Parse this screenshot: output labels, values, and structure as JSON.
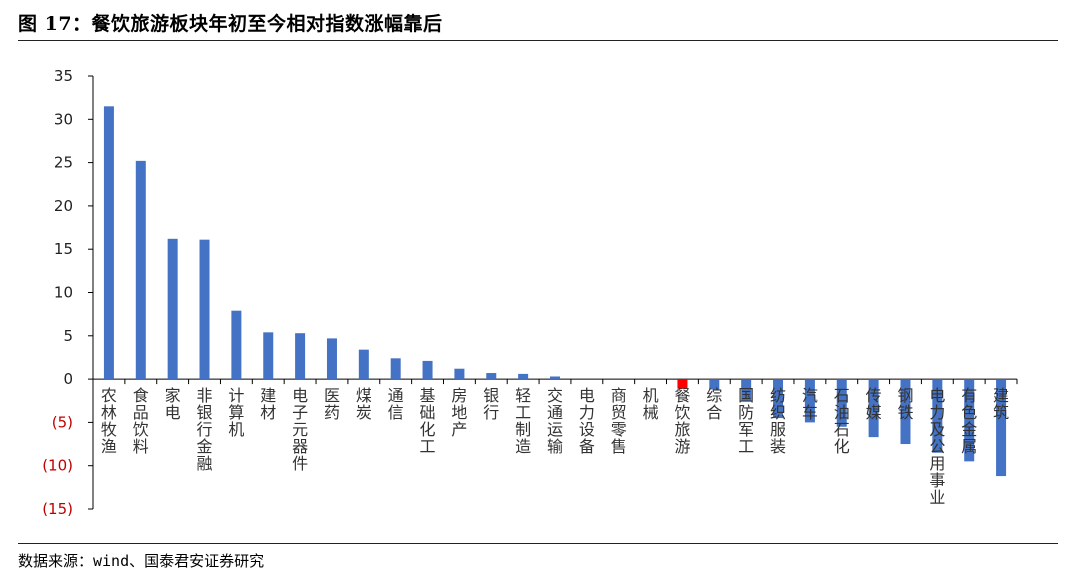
{
  "figure": {
    "title": "图 17：餐饮旅游板块年初至今相对指数涨幅靠后",
    "source": "数据来源：wind、国泰君安证券研究"
  },
  "colors": {
    "bar": "#4472C4",
    "highlight": "#FF0000",
    "negative_tick": "#C00000",
    "axis": "#000000"
  },
  "chart_data": {
    "type": "bar",
    "categories": [
      "农林牧渔",
      "食品饮料",
      "家电",
      "非银行金融",
      "计算机",
      "建材",
      "电子元器件",
      "医药",
      "煤炭",
      "通信",
      "基础化工",
      "房地产",
      "银行",
      "轻工制造",
      "交通运输",
      "电力设备",
      "商贸零售",
      "机械",
      "餐饮旅游",
      "综合",
      "国防军工",
      "纺织服装",
      "汽车",
      "石油石化",
      "传媒",
      "钢铁",
      "电力及公用事业",
      "有色金属",
      "建筑"
    ],
    "values": [
      31.5,
      25.2,
      16.2,
      16.1,
      7.9,
      5.4,
      5.3,
      4.7,
      3.4,
      2.4,
      2.1,
      1.2,
      0.7,
      0.6,
      0.3,
      0.0,
      0.0,
      0.0,
      -1.1,
      -1.2,
      -2.5,
      -4.5,
      -5.0,
      -5.5,
      -6.7,
      -7.5,
      -8.5,
      -9.5,
      -11.2
    ],
    "highlight_category": "餐饮旅游",
    "ylim": [
      -15,
      35
    ],
    "yticks": [
      35,
      30,
      25,
      20,
      15,
      10,
      5,
      0,
      -5,
      -10,
      -15
    ],
    "ytick_labels": [
      "35",
      "30",
      "25",
      "20",
      "15",
      "10",
      "5",
      "0",
      "(5)",
      "(10)",
      "(15)"
    ],
    "title": "",
    "xlabel": "",
    "ylabel": "",
    "legend": "none",
    "grid": false
  }
}
